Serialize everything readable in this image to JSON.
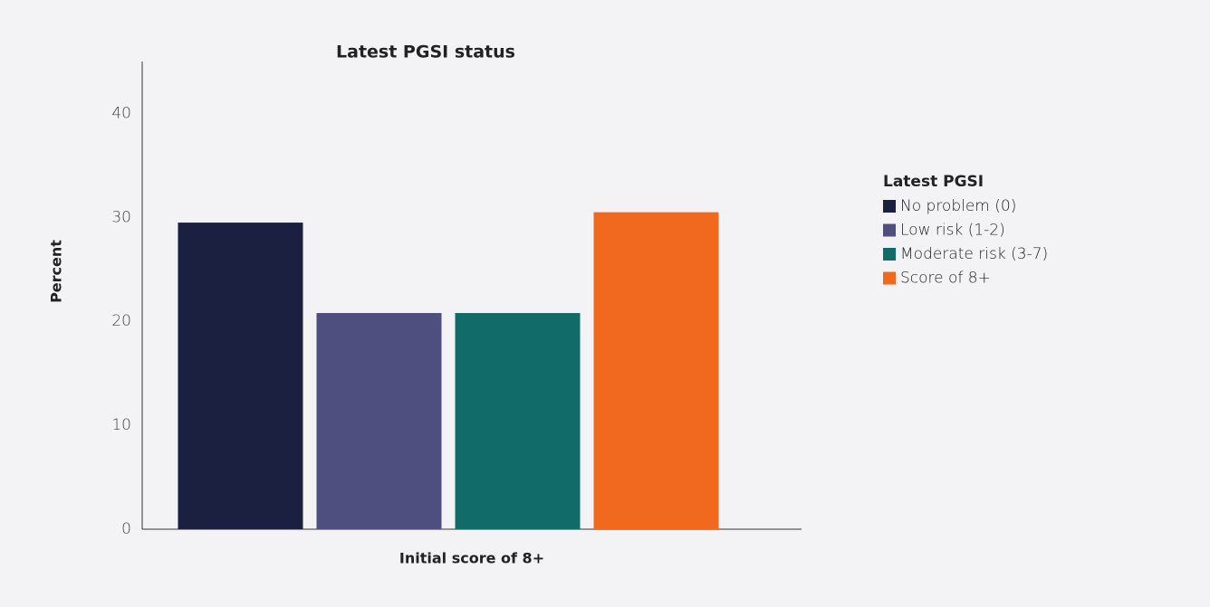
{
  "chart_data": {
    "type": "bar",
    "title": "Latest PGSI status",
    "y_label": "Percent",
    "categories": [
      "Initial score of 8+"
    ],
    "legend_title": "Latest PGSI",
    "legend_position": "right",
    "series": [
      {
        "name": "No problem (0)",
        "color": "#1b1f40",
        "values": [
          29.5
        ]
      },
      {
        "name": "Low risk (1-2)",
        "color": "#4e4f7e",
        "values": [
          20.8
        ]
      },
      {
        "name": "Moderate risk (3-7)",
        "color": "#116b69",
        "values": [
          20.8
        ]
      },
      {
        "name": "Score of 8+",
        "color": "#f0691f",
        "values": [
          30.5
        ]
      }
    ],
    "ylim": [
      0,
      45
    ],
    "yticks": [
      0,
      10,
      20,
      30,
      40
    ],
    "grid": false
  }
}
